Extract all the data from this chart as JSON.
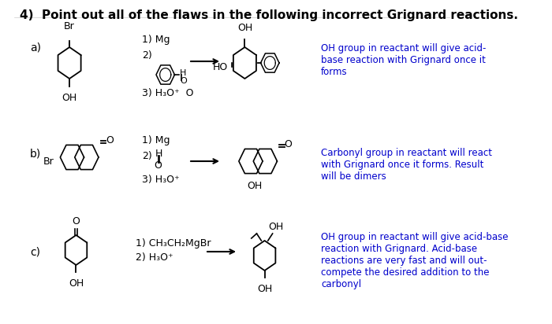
{
  "title": "4)  Point out all of the flaws in the following incorrect Grignard reactions.",
  "title_fontsize": 11,
  "bg_color": "#ffffff",
  "text_color": "#000000",
  "blue_color": "#0000cc",
  "annotation_a": "OH group in reactant will give acid-\nbase reaction with Grignard once it\nforms",
  "annotation_b": "Carbonyl group in reactant will react\nwith Grignard once it forms. Result\nwill be dimers",
  "annotation_c": "OH group in reactant will give acid-base\nreaction with Grignard. Acid-base\nreactions are very fast and will out-\ncompete the desired addition to the\ncarbonyl",
  "label_a": "a)",
  "label_b": "b)",
  "label_c": "c)",
  "steps_a": [
    "1) Mg",
    "2)",
    "3) H₃O⁺  O"
  ],
  "steps_b": [
    "1) Mg",
    "2)",
    "3) H₃O⁺"
  ],
  "steps_c": [
    "1) CH₃CH₂MgBr",
    "2) H₃O⁺"
  ]
}
